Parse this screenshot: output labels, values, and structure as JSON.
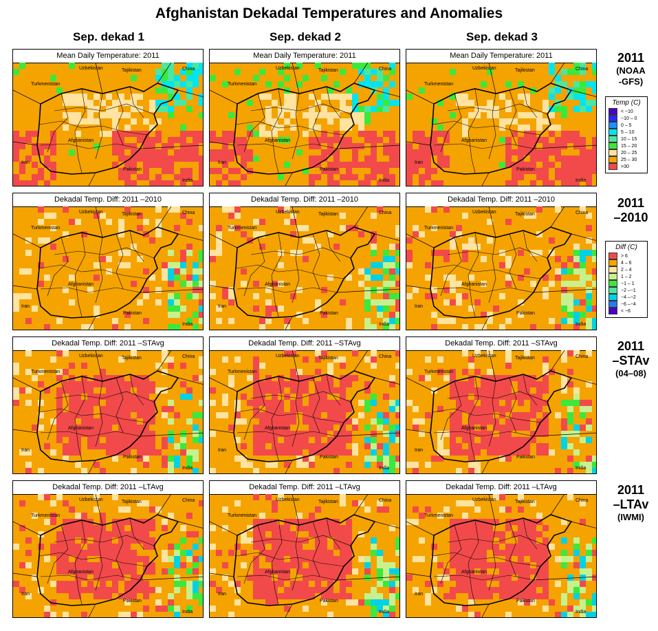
{
  "title": "Afghanistan Dekadal Temperatures and Anomalies",
  "columns": [
    "Sep. dekad 1",
    "Sep. dekad 2",
    "Sep. dekad 3"
  ],
  "row_labels": [
    {
      "main": "2011",
      "sub1": "(NOAA",
      "sub2": "-GFS)"
    },
    {
      "main": "2011",
      "sub1": "–2010",
      "sub2": ""
    },
    {
      "main": "2011",
      "sub1": "–STAv",
      "sub2": "(04–08)"
    },
    {
      "main": "2011",
      "sub1": "–LTAv",
      "sub2": "(IWMI)"
    }
  ],
  "panel_titles": [
    "Mean Daily Temperature: 2011",
    "Dekadal Temp. Diff:  2011 –2010",
    "Dekadal Temp. Diff:  2011 –STAvg",
    "Dekadal Temp. Diff:  2011 –LTAvg"
  ],
  "map_labels": {
    "uzbekistan": "Uzbekistan",
    "tajikistan": "Tajikistan",
    "china": "China",
    "turkmenistan": "Turkmenistan",
    "afghanistan": "Afghanistan",
    "iran": "Iran",
    "pakistan": "Pakistan",
    "india": "India"
  },
  "temp_legend": {
    "title": "Temp (C)",
    "items": [
      {
        "label": "< −10",
        "color": "#4b00c8"
      },
      {
        "label": "−10 –  0",
        "color": "#2828ff"
      },
      {
        "label": "0 –  5",
        "color": "#1e90ff"
      },
      {
        "label": "5 – 10",
        "color": "#00e5ee"
      },
      {
        "label": "10 – 15",
        "color": "#4de6a0"
      },
      {
        "label": "15 – 20",
        "color": "#3ce83c"
      },
      {
        "label": "20 – 25",
        "color": "#ffe39e"
      },
      {
        "label": "25 – 30",
        "color": "#f5a300"
      },
      {
        "label": ">30",
        "color": "#f24a4a"
      }
    ]
  },
  "diff_legend": {
    "title": "Diff (C)",
    "items": [
      {
        "label": "> 6",
        "color": "#f24a4a"
      },
      {
        "label": "4 – 6",
        "color": "#f5a300"
      },
      {
        "label": "2 – 4",
        "color": "#ffe39e"
      },
      {
        "label": "1 – 2",
        "color": "#c8f08c"
      },
      {
        "label": "−1 – 1",
        "color": "#3ce83c"
      },
      {
        "label": "−2 –−1",
        "color": "#4de6a0"
      },
      {
        "label": "−4 –−2",
        "color": "#00d2e6"
      },
      {
        "label": "−6 –−4",
        "color": "#2878ff"
      },
      {
        "label": "< −6",
        "color": "#4b00c8"
      }
    ]
  }
}
